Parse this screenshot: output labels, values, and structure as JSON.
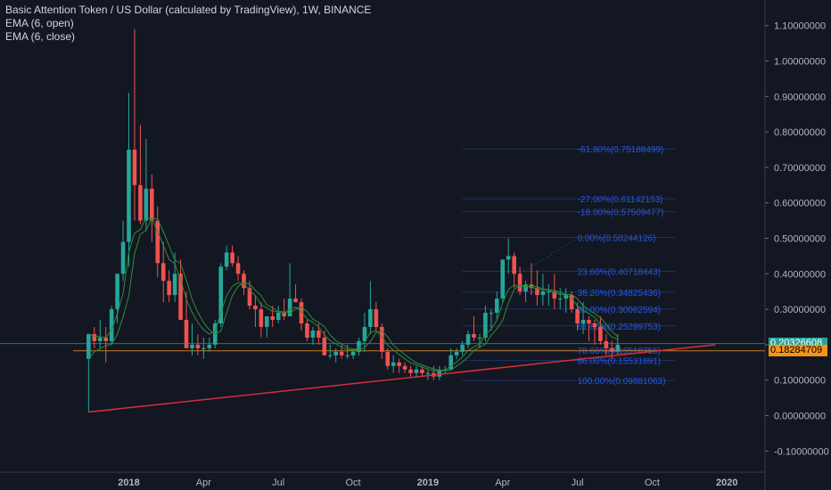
{
  "legend": {
    "title": "Basic Attention Token / US Dollar (calculated by TradingView), 1W, BINANCE",
    "ema_open": "EMA (6, open)",
    "ema_close": "EMA (6, close)"
  },
  "price_tags": {
    "green": "0.20326608",
    "orange": "0.18284709"
  },
  "colors": {
    "background": "#131722",
    "up": "#26a69a",
    "down": "#ef5350",
    "ema": "#2e8b3a",
    "trendline": "#d3303a",
    "fib": "#2962ff",
    "green_tag": "#26a69a",
    "orange_tag": "#f7931a",
    "axis_text": "#b2b5be"
  },
  "chart_data": {
    "type": "candlestick",
    "y_axis_labels": [
      "1.10000000",
      "1.00000000",
      "0.90000000",
      "0.80000000",
      "0.70000000",
      "0.60000000",
      "0.50000000",
      "0.40000000",
      "0.30000000",
      "0.20000000",
      "0.10000000",
      "0.00000000",
      "-0.10000000"
    ],
    "y_axis_values": [
      1.1,
      1.0,
      0.9,
      0.8,
      0.7,
      0.6,
      0.5,
      0.4,
      0.3,
      0.2,
      0.1,
      0.0,
      -0.1
    ],
    "x_axis_labels": [
      {
        "label": "2018",
        "t": 0
      },
      {
        "label": "Apr",
        "t": 13
      },
      {
        "label": "Jul",
        "t": 26
      },
      {
        "label": "Oct",
        "t": 39
      },
      {
        "label": "2019",
        "t": 52
      },
      {
        "label": "Apr",
        "t": 65
      },
      {
        "label": "Jul",
        "t": 78
      },
      {
        "label": "Oct",
        "t": 91
      },
      {
        "label": "2020",
        "t": 104
      }
    ],
    "candles": [
      [
        -7,
        0.16,
        0.23,
        0.01,
        0.23
      ],
      [
        -6,
        0.23,
        0.25,
        0.19,
        0.21
      ],
      [
        -5,
        0.21,
        0.27,
        0.19,
        0.22
      ],
      [
        -4,
        0.22,
        0.25,
        0.15,
        0.21
      ],
      [
        -3,
        0.21,
        0.31,
        0.2,
        0.3
      ],
      [
        -2,
        0.3,
        0.4,
        0.26,
        0.4
      ],
      [
        -1,
        0.4,
        0.55,
        0.38,
        0.49
      ],
      [
        0,
        0.49,
        0.91,
        0.42,
        0.75
      ],
      [
        1,
        0.75,
        1.09,
        0.55,
        0.65
      ],
      [
        2,
        0.65,
        0.82,
        0.54,
        0.55
      ],
      [
        3,
        0.55,
        0.78,
        0.52,
        0.64
      ],
      [
        4,
        0.64,
        0.68,
        0.49,
        0.55
      ],
      [
        5,
        0.55,
        0.59,
        0.39,
        0.43
      ],
      [
        6,
        0.43,
        0.49,
        0.32,
        0.38
      ],
      [
        7,
        0.38,
        0.41,
        0.32,
        0.34
      ],
      [
        8,
        0.34,
        0.46,
        0.32,
        0.4
      ],
      [
        9,
        0.4,
        0.44,
        0.27,
        0.27
      ],
      [
        10,
        0.27,
        0.35,
        0.2,
        0.19
      ],
      [
        11,
        0.19,
        0.26,
        0.17,
        0.2
      ],
      [
        12,
        0.2,
        0.23,
        0.17,
        0.19
      ],
      [
        13,
        0.19,
        0.22,
        0.16,
        0.19
      ],
      [
        14,
        0.19,
        0.22,
        0.18,
        0.2
      ],
      [
        15,
        0.2,
        0.27,
        0.19,
        0.26
      ],
      [
        16,
        0.26,
        0.43,
        0.25,
        0.42
      ],
      [
        17,
        0.42,
        0.48,
        0.41,
        0.46
      ],
      [
        18,
        0.46,
        0.48,
        0.42,
        0.43
      ],
      [
        19,
        0.43,
        0.45,
        0.38,
        0.4
      ],
      [
        20,
        0.4,
        0.41,
        0.34,
        0.36
      ],
      [
        21,
        0.36,
        0.38,
        0.3,
        0.31
      ],
      [
        22,
        0.31,
        0.34,
        0.25,
        0.3
      ],
      [
        23,
        0.3,
        0.32,
        0.22,
        0.25
      ],
      [
        24,
        0.25,
        0.28,
        0.22,
        0.28
      ],
      [
        25,
        0.28,
        0.31,
        0.25,
        0.27
      ],
      [
        26,
        0.27,
        0.31,
        0.26,
        0.29
      ],
      [
        27,
        0.29,
        0.33,
        0.27,
        0.28
      ],
      [
        28,
        0.28,
        0.43,
        0.28,
        0.33
      ],
      [
        29,
        0.33,
        0.37,
        0.32,
        0.32
      ],
      [
        30,
        0.32,
        0.33,
        0.24,
        0.26
      ],
      [
        31,
        0.26,
        0.27,
        0.21,
        0.22
      ],
      [
        32,
        0.22,
        0.25,
        0.2,
        0.24
      ],
      [
        33,
        0.24,
        0.26,
        0.2,
        0.22
      ],
      [
        34,
        0.22,
        0.24,
        0.18,
        0.17
      ],
      [
        35,
        0.17,
        0.2,
        0.16,
        0.17
      ],
      [
        36,
        0.17,
        0.19,
        0.15,
        0.18
      ],
      [
        37,
        0.18,
        0.2,
        0.16,
        0.17
      ],
      [
        38,
        0.17,
        0.2,
        0.16,
        0.17
      ],
      [
        39,
        0.17,
        0.19,
        0.16,
        0.18
      ],
      [
        40,
        0.18,
        0.22,
        0.17,
        0.21
      ],
      [
        41,
        0.21,
        0.29,
        0.18,
        0.25
      ],
      [
        42,
        0.25,
        0.38,
        0.23,
        0.3
      ],
      [
        43,
        0.3,
        0.32,
        0.24,
        0.25
      ],
      [
        44,
        0.25,
        0.26,
        0.16,
        0.18
      ],
      [
        45,
        0.18,
        0.19,
        0.13,
        0.14
      ],
      [
        46,
        0.14,
        0.17,
        0.12,
        0.15
      ],
      [
        47,
        0.15,
        0.16,
        0.12,
        0.14
      ],
      [
        48,
        0.14,
        0.15,
        0.12,
        0.13
      ],
      [
        49,
        0.13,
        0.14,
        0.11,
        0.12
      ],
      [
        50,
        0.12,
        0.14,
        0.11,
        0.13
      ],
      [
        51,
        0.13,
        0.14,
        0.11,
        0.12
      ],
      [
        52,
        0.12,
        0.13,
        0.1,
        0.12
      ],
      [
        53,
        0.12,
        0.14,
        0.1,
        0.11
      ],
      [
        54,
        0.11,
        0.14,
        0.1,
        0.13
      ],
      [
        55,
        0.13,
        0.14,
        0.12,
        0.13
      ],
      [
        56,
        0.13,
        0.19,
        0.13,
        0.17
      ],
      [
        57,
        0.17,
        0.19,
        0.16,
        0.18
      ],
      [
        58,
        0.18,
        0.21,
        0.17,
        0.2
      ],
      [
        59,
        0.2,
        0.24,
        0.19,
        0.23
      ],
      [
        60,
        0.23,
        0.28,
        0.21,
        0.22
      ],
      [
        61,
        0.22,
        0.23,
        0.19,
        0.22
      ],
      [
        62,
        0.22,
        0.31,
        0.21,
        0.29
      ],
      [
        63,
        0.29,
        0.3,
        0.24,
        0.29
      ],
      [
        64,
        0.29,
        0.35,
        0.27,
        0.33
      ],
      [
        65,
        0.33,
        0.44,
        0.32,
        0.44
      ],
      [
        66,
        0.44,
        0.5,
        0.4,
        0.45
      ],
      [
        67,
        0.45,
        0.46,
        0.36,
        0.4
      ],
      [
        68,
        0.4,
        0.42,
        0.34,
        0.35
      ],
      [
        69,
        0.35,
        0.38,
        0.32,
        0.37
      ],
      [
        70,
        0.37,
        0.43,
        0.34,
        0.36
      ],
      [
        71,
        0.36,
        0.41,
        0.31,
        0.34
      ],
      [
        72,
        0.34,
        0.4,
        0.31,
        0.35
      ],
      [
        73,
        0.35,
        0.37,
        0.31,
        0.35
      ],
      [
        74,
        0.35,
        0.4,
        0.3,
        0.33
      ],
      [
        75,
        0.33,
        0.36,
        0.3,
        0.33
      ],
      [
        76,
        0.33,
        0.36,
        0.29,
        0.34
      ],
      [
        77,
        0.34,
        0.35,
        0.29,
        0.3
      ],
      [
        78,
        0.3,
        0.32,
        0.24,
        0.26
      ],
      [
        79,
        0.26,
        0.32,
        0.23,
        0.27
      ],
      [
        80,
        0.27,
        0.28,
        0.21,
        0.26
      ],
      [
        81,
        0.26,
        0.27,
        0.2,
        0.25
      ],
      [
        82,
        0.25,
        0.28,
        0.2,
        0.21
      ],
      [
        83,
        0.21,
        0.23,
        0.17,
        0.19
      ],
      [
        84,
        0.19,
        0.21,
        0.16,
        0.18
      ],
      [
        85,
        0.18,
        0.23,
        0.17,
        0.2
      ]
    ],
    "fibonacci": [
      {
        "label": "-61.80%(0.75188499)",
        "value": 0.75188499
      },
      {
        "label": "-27.00%(0.61142153)",
        "value": 0.61142153
      },
      {
        "label": "-18.00%(0.57509477)",
        "value": 0.57509477
      },
      {
        "label": "0.00%(0.50244126)",
        "value": 0.50244126
      },
      {
        "label": "23.60%(0.40718443)",
        "value": 0.40718443
      },
      {
        "label": "38.20%(0.34825436)",
        "value": 0.34825436
      },
      {
        "label": "50.00%(0.30062594)",
        "value": 0.30062594
      },
      {
        "label": "61.80%(0.25299753)",
        "value": 0.25299753
      },
      {
        "label": "78.60%(0.18518755)",
        "value": 0.18518755
      },
      {
        "label": "86.00%(0.15531891)",
        "value": 0.15531891
      },
      {
        "label": "100.00%(0.09881063)",
        "value": 0.09881063
      }
    ],
    "trendline": [
      {
        "t": -7,
        "price": 0.01
      },
      {
        "t": 102,
        "price": 0.2
      }
    ],
    "horizontal_lines": [
      0.20326608,
      0.18284709
    ]
  }
}
